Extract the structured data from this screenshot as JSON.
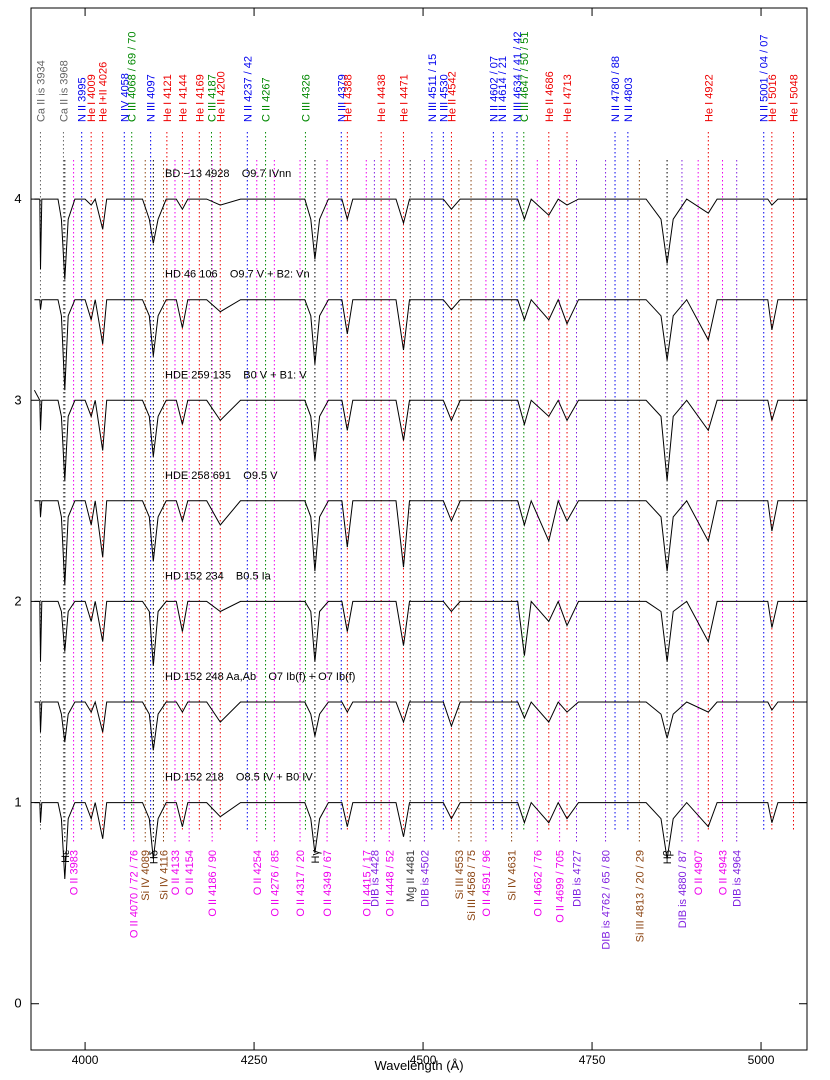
{
  "chart_data": {
    "type": "line",
    "xlabel": "Wavelength (Å)",
    "xlim": [
      3920,
      5068
    ],
    "ylim": [
      -0.23,
      4.95
    ],
    "xticks": [
      4000,
      4250,
      4500,
      4750,
      5000
    ],
    "yticks": [
      0,
      1,
      2,
      3,
      4
    ],
    "x": [
      3925,
      3933,
      3934,
      3936,
      3960,
      3965,
      3970,
      3975,
      3985,
      4000,
      4009,
      4015,
      4026,
      4032,
      4050,
      4070,
      4085,
      4095,
      4101,
      4108,
      4120,
      4135,
      4144,
      4152,
      4180,
      4200,
      4230,
      4260,
      4300,
      4325,
      4334,
      4340,
      4347,
      4360,
      4380,
      4388,
      4396,
      4420,
      4440,
      4460,
      4471,
      4480,
      4500,
      4530,
      4542,
      4555,
      4600,
      4640,
      4650,
      4660,
      4686,
      4700,
      4713,
      4730,
      4780,
      4830,
      4852,
      4861,
      4870,
      4890,
      4922,
      4935,
      4980,
      5010,
      5016,
      5025,
      5068
    ],
    "series": [
      {
        "name": "BD −13 4928    O9.7 IVnn",
        "color": "#000000",
        "values": [
          4,
          4,
          3.65,
          4,
          4,
          3.9,
          3.6,
          3.9,
          4,
          4,
          3.97,
          4,
          3.85,
          4,
          4,
          4,
          4,
          3.9,
          3.78,
          3.9,
          4,
          4,
          3.95,
          4,
          4,
          3.97,
          4,
          4,
          4,
          4,
          3.9,
          3.7,
          3.9,
          4,
          4,
          3.9,
          4,
          4,
          4,
          4,
          3.88,
          4,
          4,
          4,
          3.95,
          4,
          4,
          4,
          3.9,
          4,
          3.92,
          4,
          3.97,
          4,
          4,
          4,
          3.9,
          3.68,
          3.9,
          4,
          3.93,
          4,
          4,
          4,
          3.97,
          4,
          4
        ]
      },
      {
        "name": "HD 46 106    O9.7 V + B2: Vn",
        "color": "#000000",
        "values": [
          3.5,
          3.5,
          3.45,
          3.5,
          3.5,
          3.42,
          3.05,
          3.42,
          3.5,
          3.5,
          3.4,
          3.5,
          3.28,
          3.5,
          3.5,
          3.5,
          3.5,
          3.42,
          3.22,
          3.42,
          3.5,
          3.5,
          3.36,
          3.5,
          3.5,
          3.44,
          3.5,
          3.5,
          3.5,
          3.5,
          3.42,
          3.18,
          3.42,
          3.5,
          3.5,
          3.33,
          3.5,
          3.5,
          3.5,
          3.5,
          3.25,
          3.5,
          3.5,
          3.5,
          3.45,
          3.5,
          3.5,
          3.5,
          3.4,
          3.5,
          3.4,
          3.5,
          3.38,
          3.5,
          3.5,
          3.5,
          3.42,
          3.2,
          3.42,
          3.5,
          3.3,
          3.5,
          3.5,
          3.5,
          3.35,
          3.5,
          3.5
        ]
      },
      {
        "name": "HDE 259 135    B0 V + B1: V",
        "color": "#000000",
        "values": [
          3.05,
          3.0,
          2.85,
          3.0,
          3.0,
          2.92,
          2.6,
          2.92,
          3.0,
          3.0,
          2.92,
          3.0,
          2.75,
          3.0,
          3.0,
          3.0,
          3.0,
          2.92,
          2.72,
          2.92,
          3.0,
          3.0,
          2.88,
          3.0,
          3.0,
          2.9,
          3.0,
          3.0,
          3.0,
          3.0,
          2.92,
          2.7,
          2.92,
          3.0,
          3.0,
          2.85,
          3.0,
          3.0,
          3.0,
          3.0,
          2.8,
          3.0,
          3.0,
          3.0,
          2.9,
          3.0,
          3.0,
          3.0,
          2.88,
          3.0,
          2.92,
          3.0,
          2.9,
          3.0,
          3.0,
          3.0,
          2.92,
          2.6,
          2.92,
          3.0,
          2.85,
          3.0,
          3.0,
          3.0,
          2.9,
          3.0,
          3.0
        ]
      },
      {
        "name": "HDE 258 691    O9.5 V",
        "color": "#000000",
        "values": [
          2.5,
          2.5,
          2.42,
          2.5,
          2.5,
          2.42,
          2.08,
          2.42,
          2.5,
          2.5,
          2.38,
          2.5,
          2.22,
          2.5,
          2.5,
          2.5,
          2.5,
          2.42,
          2.2,
          2.42,
          2.5,
          2.5,
          2.4,
          2.5,
          2.5,
          2.38,
          2.5,
          2.5,
          2.5,
          2.5,
          2.42,
          2.15,
          2.42,
          2.5,
          2.5,
          2.27,
          2.5,
          2.5,
          2.5,
          2.5,
          2.17,
          2.5,
          2.5,
          2.5,
          2.4,
          2.5,
          2.5,
          2.5,
          2.38,
          2.5,
          2.3,
          2.5,
          2.4,
          2.5,
          2.5,
          2.5,
          2.42,
          2.15,
          2.42,
          2.5,
          2.3,
          2.5,
          2.5,
          2.5,
          2.35,
          2.5,
          2.5
        ]
      },
      {
        "name": "HD 152 234    B0.5 Ia",
        "color": "#000000",
        "values": [
          2.0,
          2.0,
          1.7,
          2.0,
          2.0,
          1.95,
          1.75,
          1.95,
          2.0,
          2.0,
          1.9,
          2.0,
          1.8,
          2.0,
          2.0,
          2.0,
          2.0,
          1.95,
          1.68,
          1.95,
          2.0,
          2.0,
          1.85,
          2.0,
          2.0,
          1.95,
          2.0,
          2.0,
          2.0,
          2.0,
          1.95,
          1.7,
          1.95,
          2.0,
          2.0,
          1.85,
          2.0,
          2.0,
          2.0,
          2.0,
          1.78,
          2.0,
          2.0,
          2.0,
          1.95,
          2.0,
          2.0,
          2.0,
          1.73,
          2.0,
          1.9,
          2.0,
          1.88,
          2.0,
          2.0,
          2.0,
          1.95,
          1.7,
          1.95,
          2.0,
          1.8,
          2.0,
          2.0,
          2.0,
          1.87,
          2.0,
          2.0
        ]
      },
      {
        "name": "HD 152 248 Aa,Ab    O7 Ib(f) + O7 Ib(f)",
        "color": "#000000",
        "values": [
          1.5,
          1.5,
          1.35,
          1.5,
          1.5,
          1.44,
          1.3,
          1.44,
          1.5,
          1.5,
          1.45,
          1.5,
          1.35,
          1.5,
          1.5,
          1.5,
          1.5,
          1.44,
          1.26,
          1.44,
          1.5,
          1.5,
          1.45,
          1.5,
          1.5,
          1.4,
          1.5,
          1.5,
          1.5,
          1.5,
          1.44,
          1.33,
          1.44,
          1.5,
          1.5,
          1.45,
          1.5,
          1.5,
          1.5,
          1.5,
          1.4,
          1.5,
          1.5,
          1.5,
          1.38,
          1.5,
          1.5,
          1.5,
          1.42,
          1.5,
          1.4,
          1.5,
          1.45,
          1.5,
          1.5,
          1.5,
          1.44,
          1.32,
          1.44,
          1.5,
          1.45,
          1.5,
          1.5,
          1.5,
          1.46,
          1.5,
          1.5
        ]
      },
      {
        "name": "HD 152 218    O8.5 IV + B0 IV",
        "color": "#000000",
        "values": [
          1.0,
          1.0,
          0.9,
          1.0,
          1.0,
          0.92,
          0.62,
          0.92,
          1.0,
          1.0,
          0.92,
          1.0,
          0.82,
          1.0,
          1.0,
          1.0,
          1.0,
          0.92,
          0.72,
          0.92,
          1.0,
          1.0,
          0.88,
          1.0,
          1.0,
          0.93,
          1.0,
          1.0,
          1.0,
          1.0,
          0.92,
          0.75,
          0.92,
          1.0,
          1.0,
          0.88,
          1.0,
          1.0,
          1.0,
          1.0,
          0.83,
          1.0,
          1.0,
          1.0,
          0.92,
          1.0,
          1.0,
          1.0,
          0.9,
          1.0,
          0.9,
          1.0,
          0.92,
          1.0,
          1.0,
          1.0,
          0.92,
          0.72,
          0.92,
          1.0,
          0.88,
          1.0,
          1.0,
          1.0,
          0.9,
          1.0,
          1.0
        ]
      }
    ],
    "top_lines": [
      {
        "label": "Ca II is 3934",
        "wavelength": 3934,
        "color": "#666666"
      },
      {
        "label": "Ca II is 3968",
        "wavelength": 3968,
        "color": "#666666"
      },
      {
        "label": "N II 3995",
        "wavelength": 3995,
        "color": "#0000ee"
      },
      {
        "label": "He I 4009",
        "wavelength": 4009,
        "color": "#ee0000"
      },
      {
        "label": "He I+II 4026",
        "wavelength": 4026,
        "color": "#ee0000"
      },
      {
        "label": "N IV 4058",
        "wavelength": 4058,
        "color": "#0000ee"
      },
      {
        "label": "C III 4068 / 69 / 70",
        "wavelength": 4069,
        "color": "#008800"
      },
      {
        "label": "N III 4097",
        "wavelength": 4097,
        "color": "#0000ee"
      },
      {
        "label": "He I 4121",
        "wavelength": 4121,
        "color": "#ee0000"
      },
      {
        "label": "He I 4144",
        "wavelength": 4144,
        "color": "#ee0000"
      },
      {
        "label": "He I 4169",
        "wavelength": 4169,
        "color": "#ee0000"
      },
      {
        "label": "C III 4187",
        "wavelength": 4187,
        "color": "#008800"
      },
      {
        "label": "He II 4200",
        "wavelength": 4200,
        "color": "#ee0000"
      },
      {
        "label": "N II 4237 / 42",
        "wavelength": 4240,
        "color": "#0000ee"
      },
      {
        "label": "C II 4267",
        "wavelength": 4267,
        "color": "#008800"
      },
      {
        "label": "C III 4326",
        "wavelength": 4326,
        "color": "#008800"
      },
      {
        "label": "N III 4379",
        "wavelength": 4379,
        "color": "#0000ee"
      },
      {
        "label": "He I 4388",
        "wavelength": 4388,
        "color": "#ee0000"
      },
      {
        "label": "He I 4438",
        "wavelength": 4438,
        "color": "#ee0000"
      },
      {
        "label": "He I 4471",
        "wavelength": 4471,
        "color": "#ee0000"
      },
      {
        "label": "N III 4511 / 15",
        "wavelength": 4513,
        "color": "#0000ee"
      },
      {
        "label": "N III 4530",
        "wavelength": 4530,
        "color": "#0000ee"
      },
      {
        "label": "He II 4542",
        "wavelength": 4542,
        "color": "#ee0000"
      },
      {
        "label": "N II 4602 / 07",
        "wavelength": 4604,
        "color": "#0000ee"
      },
      {
        "label": "N II 4614 / 21",
        "wavelength": 4617,
        "color": "#0000ee"
      },
      {
        "label": "N III 4634 / 41 / 42",
        "wavelength": 4639,
        "color": "#0000ee"
      },
      {
        "label": "C III 4647 / 50 / 51",
        "wavelength": 4649,
        "color": "#008800"
      },
      {
        "label": "He II 4686",
        "wavelength": 4686,
        "color": "#ee0000"
      },
      {
        "label": "He I 4713",
        "wavelength": 4713,
        "color": "#ee0000"
      },
      {
        "label": "N II 4780 / 88",
        "wavelength": 4784,
        "color": "#0000ee"
      },
      {
        "label": "N II 4803",
        "wavelength": 4803,
        "color": "#0000ee"
      },
      {
        "label": "He I 4922",
        "wavelength": 4922,
        "color": "#ee0000"
      },
      {
        "label": "N II 5001 / 04 / 07",
        "wavelength": 5004,
        "color": "#0000ee"
      },
      {
        "label": "He I 5016",
        "wavelength": 5016,
        "color": "#ee0000"
      },
      {
        "label": "He I 5048",
        "wavelength": 5048,
        "color": "#ee0000"
      }
    ],
    "bottom_lines": [
      {
        "label": "Hε",
        "wavelength": 3970,
        "color": "#000000"
      },
      {
        "label": "O II 3983",
        "wavelength": 3983,
        "color": "#ee00ee"
      },
      {
        "label": "O II 4070 / 72 / 76",
        "wavelength": 4072,
        "color": "#ee00ee"
      },
      {
        "label": "Si IV 4089",
        "wavelength": 4089,
        "color": "#8b4513"
      },
      {
        "label": "Hδ",
        "wavelength": 4101,
        "color": "#000000"
      },
      {
        "label": "Si IV 4116",
        "wavelength": 4116,
        "color": "#8b4513"
      },
      {
        "label": "O II 4133",
        "wavelength": 4133,
        "color": "#ee00ee"
      },
      {
        "label": "O II 4154",
        "wavelength": 4154,
        "color": "#ee00ee"
      },
      {
        "label": "O II 4186 / 90",
        "wavelength": 4188,
        "color": "#ee00ee"
      },
      {
        "label": "O II 4254",
        "wavelength": 4254,
        "color": "#ee00ee"
      },
      {
        "label": "O II 4276 / 85",
        "wavelength": 4280,
        "color": "#ee00ee"
      },
      {
        "label": "O II 4317 / 20",
        "wavelength": 4318,
        "color": "#ee00ee"
      },
      {
        "label": "Hγ",
        "wavelength": 4340,
        "color": "#000000"
      },
      {
        "label": "O II 4349 / 67",
        "wavelength": 4358,
        "color": "#ee00ee"
      },
      {
        "label": "O II 4415 / 17",
        "wavelength": 4416,
        "color": "#ee00ee"
      },
      {
        "label": "DIB is 4428",
        "wavelength": 4428,
        "color": "#8020e0"
      },
      {
        "label": "O II 4448 / 52",
        "wavelength": 4450,
        "color": "#ee00ee"
      },
      {
        "label": "Mg II 4481",
        "wavelength": 4481,
        "color": "#333333"
      },
      {
        "label": "DIB is 4502",
        "wavelength": 4502,
        "color": "#8020e0"
      },
      {
        "label": "Si III 4553",
        "wavelength": 4553,
        "color": "#8b4513"
      },
      {
        "label": "Si III 4568 / 75",
        "wavelength": 4571,
        "color": "#8b4513"
      },
      {
        "label": "O II 4591 / 96",
        "wavelength": 4593,
        "color": "#ee00ee"
      },
      {
        "label": "Si IV 4631",
        "wavelength": 4631,
        "color": "#8b4513"
      },
      {
        "label": "O II 4662 / 76",
        "wavelength": 4669,
        "color": "#ee00ee"
      },
      {
        "label": "O II 4699 / 705",
        "wavelength": 4702,
        "color": "#ee00ee"
      },
      {
        "label": "DIB is 4727",
        "wavelength": 4727,
        "color": "#8020e0"
      },
      {
        "label": "DIB is 4762 / 65 / 80",
        "wavelength": 4770,
        "color": "#8020e0"
      },
      {
        "label": "Si III 4813 / 20 / 29",
        "wavelength": 4820,
        "color": "#8b4513"
      },
      {
        "label": "Hβ",
        "wavelength": 4861,
        "color": "#000000"
      },
      {
        "label": "DIB is 4880 / 87",
        "wavelength": 4883,
        "color": "#8020e0"
      },
      {
        "label": "O II 4907",
        "wavelength": 4907,
        "color": "#ee00ee"
      },
      {
        "label": "O II 4943",
        "wavelength": 4943,
        "color": "#ee00ee"
      },
      {
        "label": "DIB is 4964",
        "wavelength": 4964,
        "color": "#8020e0"
      }
    ]
  }
}
